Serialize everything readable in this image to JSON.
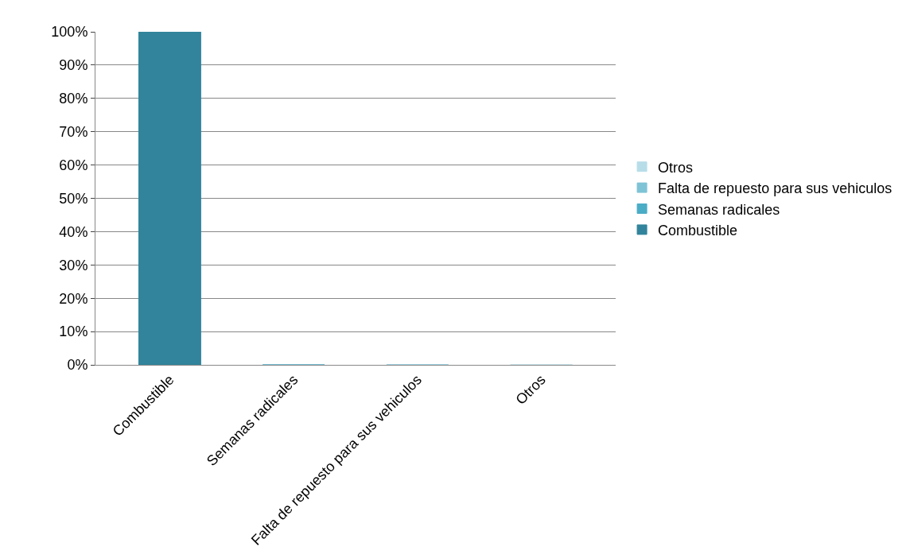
{
  "chart_data": {
    "type": "bar",
    "categories": [
      "Combustible",
      "Semanas radicales",
      "Falta de repuesto para sus vehiculos",
      "Otros"
    ],
    "series": [
      {
        "name": "Combustible",
        "color": "#31849b",
        "values": [
          100,
          null,
          null,
          null
        ]
      },
      {
        "name": "Semanas radicales",
        "color": "#4bacc6",
        "values": [
          null,
          0,
          null,
          null
        ]
      },
      {
        "name": "Falta de repuesto para sus vehiculos",
        "color": "#7fc3d6",
        "values": [
          null,
          null,
          0,
          null
        ]
      },
      {
        "name": "Otros",
        "color": "#b7dde8",
        "values": [
          null,
          null,
          null,
          0
        ]
      }
    ],
    "ylim": [
      0,
      100
    ],
    "yticks": [
      {
        "value": 0,
        "label": "0%"
      },
      {
        "value": 10,
        "label": "10%"
      },
      {
        "value": 20,
        "label": "20%"
      },
      {
        "value": 30,
        "label": "30%"
      },
      {
        "value": 40,
        "label": "40%"
      },
      {
        "value": 50,
        "label": "50%"
      },
      {
        "value": 60,
        "label": "60%"
      },
      {
        "value": 70,
        "label": "70%"
      },
      {
        "value": 80,
        "label": "80%"
      },
      {
        "value": 90,
        "label": "90%"
      },
      {
        "value": 100,
        "label": "100%"
      }
    ],
    "grid": "y",
    "legend": "right"
  }
}
